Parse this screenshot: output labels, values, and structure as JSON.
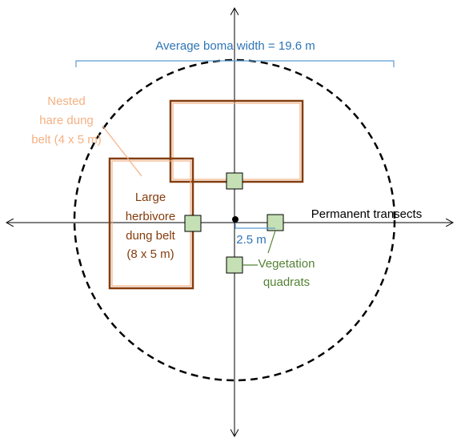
{
  "title": "Average boma width = 19.6 m",
  "hare_belt": {
    "lines": [
      "Nested",
      "hare dung",
      "belt (4 x 5 m)"
    ]
  },
  "herbivore_belt": {
    "lines": [
      "Large",
      "herbivore",
      "dung belt",
      "(8 x 5 m)"
    ]
  },
  "transects": "Permanent transects",
  "distance": "2.5 m",
  "quadrats": {
    "lines": [
      "Vegetation",
      "quadrats"
    ]
  }
}
